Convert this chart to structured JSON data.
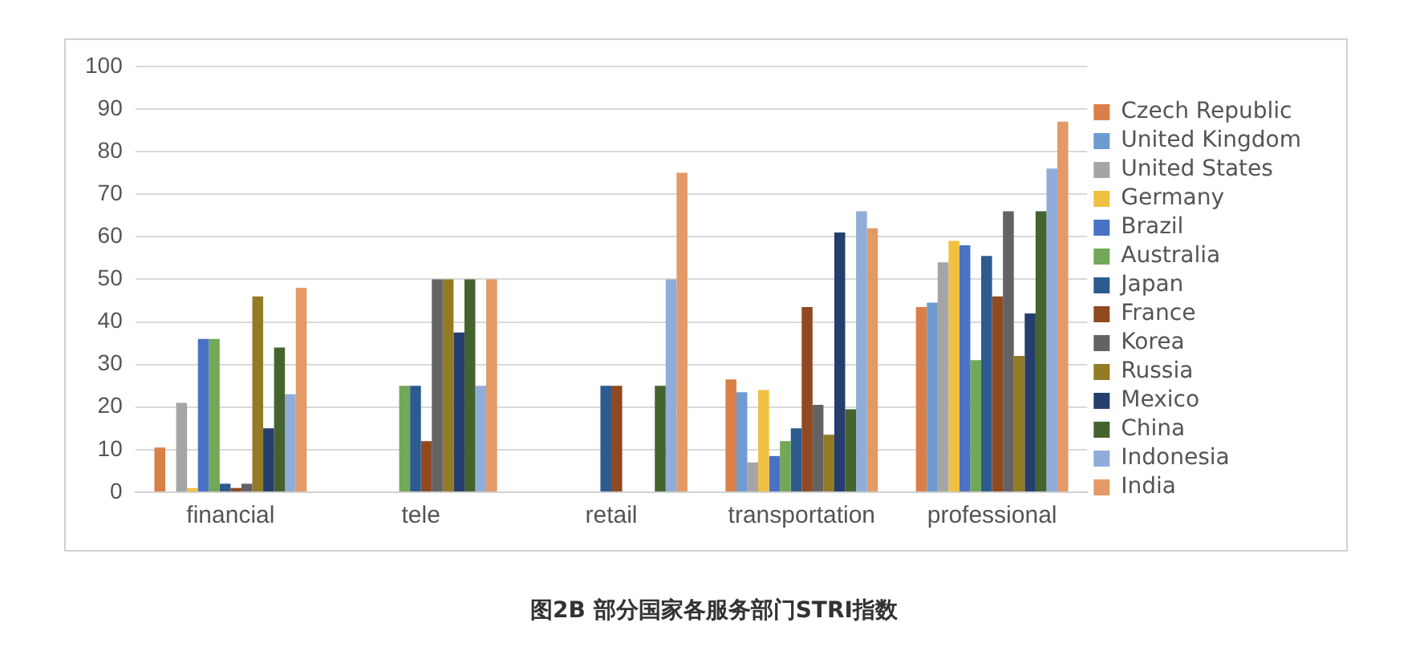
{
  "chart_data": {
    "type": "bar",
    "title": "图2B 部分国家各服务部门STRI指数",
    "categories": [
      "financial",
      "tele",
      "retail",
      "transportation",
      "professional"
    ],
    "ylim": [
      0,
      100
    ],
    "yticks": [
      0,
      10,
      20,
      30,
      40,
      50,
      60,
      70,
      80,
      90,
      100
    ],
    "grid": "y",
    "legend": "right",
    "series": [
      {
        "name": "Czech Republic",
        "color": "#d9804a",
        "values": [
          10.5,
          0,
          0,
          26.5,
          43.5
        ]
      },
      {
        "name": "United Kingdom",
        "color": "#6f9bd0",
        "values": [
          0,
          0,
          0,
          23.5,
          44.5
        ]
      },
      {
        "name": "United States",
        "color": "#a5a5a5",
        "values": [
          21,
          0,
          0,
          7,
          54
        ]
      },
      {
        "name": "Germany",
        "color": "#f0c040",
        "values": [
          1,
          0,
          0,
          24,
          59
        ]
      },
      {
        "name": "Brazil",
        "color": "#4a72c4",
        "values": [
          36,
          0,
          0,
          8.5,
          58
        ]
      },
      {
        "name": "Australia",
        "color": "#72a857",
        "values": [
          36,
          25,
          0,
          12,
          31
        ]
      },
      {
        "name": "Japan",
        "color": "#2d5a8f",
        "values": [
          2,
          25,
          25,
          15,
          55.5
        ]
      },
      {
        "name": "France",
        "color": "#8f4a22",
        "values": [
          1,
          12,
          25,
          43.5,
          46
        ]
      },
      {
        "name": "Korea",
        "color": "#636363",
        "values": [
          2,
          50,
          0,
          20.5,
          66
        ]
      },
      {
        "name": "Russia",
        "color": "#937a25",
        "values": [
          46,
          50,
          0,
          13.5,
          32
        ]
      },
      {
        "name": "Mexico",
        "color": "#263e6e",
        "values": [
          15,
          37.5,
          0,
          61,
          42
        ]
      },
      {
        "name": "China",
        "color": "#45632f",
        "values": [
          34,
          50,
          25,
          19.5,
          66
        ]
      },
      {
        "name": "Indonesia",
        "color": "#8fadd8",
        "values": [
          23,
          25,
          50,
          66,
          76
        ]
      },
      {
        "name": "India",
        "color": "#e39a66",
        "values": [
          48,
          50,
          75,
          62,
          87
        ]
      }
    ]
  }
}
